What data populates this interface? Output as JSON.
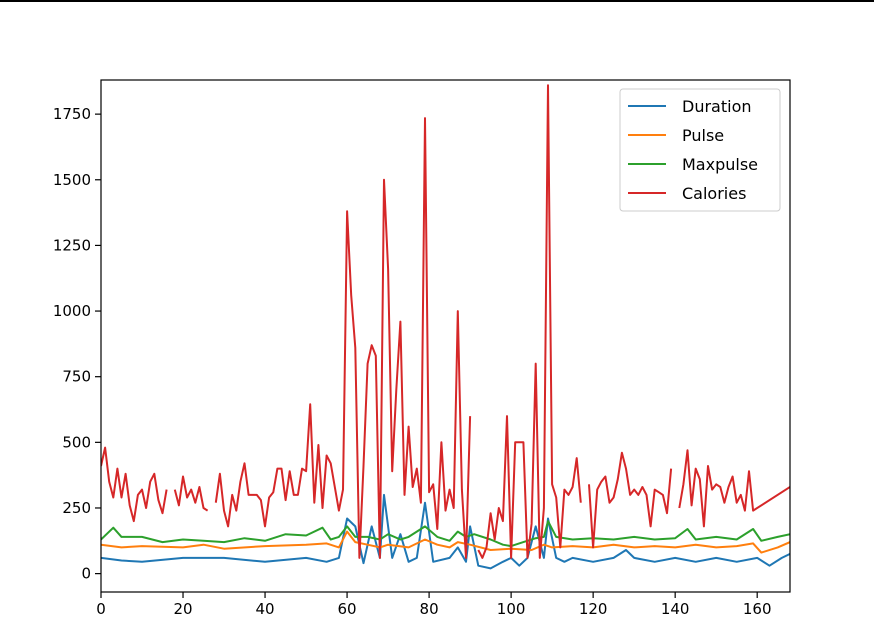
{
  "chart_data": {
    "type": "line",
    "title": "",
    "xlabel": "",
    "ylabel": "",
    "xlim": [
      0,
      168
    ],
    "ylim": [
      -70,
      1880
    ],
    "xticks": [
      0,
      20,
      40,
      60,
      80,
      100,
      120,
      140,
      160
    ],
    "yticks": [
      0,
      250,
      500,
      750,
      1000,
      1250,
      1500,
      1750
    ],
    "grid": false,
    "legend_position": "top-right",
    "series": [
      {
        "name": "Duration",
        "color": "#1f77b4",
        "points": [
          [
            0,
            60
          ],
          [
            5,
            50
          ],
          [
            10,
            45
          ],
          [
            20,
            60
          ],
          [
            30,
            60
          ],
          [
            40,
            45
          ],
          [
            50,
            60
          ],
          [
            55,
            45
          ],
          [
            58,
            60
          ],
          [
            60,
            210
          ],
          [
            62,
            180
          ],
          [
            64,
            40
          ],
          [
            66,
            180
          ],
          [
            68,
            60
          ],
          [
            69,
            300
          ],
          [
            71,
            60
          ],
          [
            73,
            150
          ],
          [
            75,
            45
          ],
          [
            77,
            60
          ],
          [
            79,
            270
          ],
          [
            81,
            45
          ],
          [
            85,
            60
          ],
          [
            87,
            100
          ],
          [
            89,
            45
          ],
          [
            90,
            180
          ],
          [
            92,
            30
          ],
          [
            95,
            20
          ],
          [
            98,
            45
          ],
          [
            100,
            60
          ],
          [
            102,
            30
          ],
          [
            104,
            60
          ],
          [
            106,
            180
          ],
          [
            108,
            60
          ],
          [
            109,
            210
          ],
          [
            111,
            60
          ],
          [
            113,
            45
          ],
          [
            115,
            60
          ],
          [
            120,
            45
          ],
          [
            125,
            60
          ],
          [
            128,
            90
          ],
          [
            130,
            60
          ],
          [
            135,
            45
          ],
          [
            140,
            60
          ],
          [
            145,
            45
          ],
          [
            150,
            60
          ],
          [
            155,
            45
          ],
          [
            160,
            60
          ],
          [
            163,
            30
          ],
          [
            166,
            60
          ],
          [
            168,
            75
          ]
        ]
      },
      {
        "name": "Pulse",
        "color": "#ff7f0e",
        "points": [
          [
            0,
            110
          ],
          [
            5,
            100
          ],
          [
            10,
            105
          ],
          [
            20,
            100
          ],
          [
            25,
            110
          ],
          [
            30,
            95
          ],
          [
            40,
            105
          ],
          [
            50,
            110
          ],
          [
            55,
            115
          ],
          [
            58,
            100
          ],
          [
            60,
            160
          ],
          [
            62,
            120
          ],
          [
            65,
            110
          ],
          [
            68,
            100
          ],
          [
            70,
            110
          ],
          [
            75,
            100
          ],
          [
            79,
            130
          ],
          [
            82,
            110
          ],
          [
            85,
            100
          ],
          [
            87,
            120
          ],
          [
            90,
            110
          ],
          [
            95,
            90
          ],
          [
            100,
            95
          ],
          [
            105,
            90
          ],
          [
            108,
            110
          ],
          [
            110,
            100
          ],
          [
            115,
            105
          ],
          [
            120,
            100
          ],
          [
            125,
            110
          ],
          [
            130,
            100
          ],
          [
            135,
            105
          ],
          [
            140,
            100
          ],
          [
            145,
            110
          ],
          [
            150,
            100
          ],
          [
            155,
            105
          ],
          [
            159,
            115
          ],
          [
            161,
            80
          ],
          [
            165,
            100
          ],
          [
            168,
            120
          ]
        ]
      },
      {
        "name": "Maxpulse",
        "color": "#2ca02c",
        "points": [
          [
            0,
            130
          ],
          [
            3,
            175
          ],
          [
            5,
            140
          ],
          [
            10,
            140
          ],
          [
            15,
            120
          ],
          [
            20,
            130
          ],
          [
            25,
            125
          ],
          [
            30,
            120
          ],
          [
            35,
            135
          ],
          [
            40,
            125
          ],
          [
            45,
            150
          ],
          [
            50,
            145
          ],
          [
            54,
            175
          ],
          [
            56,
            130
          ],
          [
            58,
            140
          ],
          [
            60,
            180
          ],
          [
            62,
            140
          ],
          [
            65,
            140
          ],
          [
            68,
            130
          ],
          [
            70,
            150
          ],
          [
            73,
            130
          ],
          [
            75,
            140
          ],
          [
            79,
            180
          ],
          [
            82,
            140
          ],
          [
            85,
            125
          ],
          [
            87,
            160
          ],
          [
            89,
            140
          ],
          [
            91,
            150
          ],
          [
            95,
            130
          ],
          [
            98,
            110
          ],
          [
            100,
            105
          ],
          [
            103,
            120
          ],
          [
            106,
            135
          ],
          [
            108,
            140
          ],
          [
            109,
            200
          ],
          [
            111,
            140
          ],
          [
            115,
            130
          ],
          [
            120,
            135
          ],
          [
            125,
            130
          ],
          [
            130,
            140
          ],
          [
            135,
            130
          ],
          [
            140,
            135
          ],
          [
            143,
            170
          ],
          [
            145,
            130
          ],
          [
            150,
            140
          ],
          [
            155,
            130
          ],
          [
            159,
            170
          ],
          [
            161,
            125
          ],
          [
            165,
            140
          ],
          [
            168,
            150
          ]
        ]
      },
      {
        "name": "Calories",
        "color": "#d62728",
        "segments": [
          [
            [
              0,
              410
            ],
            [
              1,
              480
            ],
            [
              2,
              350
            ],
            [
              3,
              290
            ],
            [
              4,
              400
            ],
            [
              5,
              290
            ],
            [
              6,
              380
            ],
            [
              7,
              260
            ],
            [
              8,
              200
            ],
            [
              9,
              300
            ],
            [
              10,
              320
            ],
            [
              11,
              250
            ],
            [
              12,
              350
            ],
            [
              13,
              380
            ],
            [
              14,
              280
            ],
            [
              15,
              230
            ],
            [
              16,
              320
            ]
          ],
          [
            [
              18,
              320
            ],
            [
              19,
              260
            ],
            [
              20,
              370
            ],
            [
              21,
              290
            ],
            [
              22,
              320
            ],
            [
              23,
              270
            ],
            [
              24,
              330
            ],
            [
              25,
              250
            ],
            [
              26,
              240
            ]
          ],
          [
            [
              28,
              270
            ],
            [
              29,
              380
            ],
            [
              30,
              240
            ],
            [
              31,
              180
            ],
            [
              32,
              300
            ],
            [
              33,
              240
            ],
            [
              34,
              350
            ],
            [
              35,
              420
            ],
            [
              36,
              300
            ],
            [
              37,
              300
            ],
            [
              38,
              300
            ],
            [
              39,
              280
            ],
            [
              40,
              180
            ],
            [
              41,
              290
            ],
            [
              42,
              310
            ],
            [
              43,
              400
            ],
            [
              44,
              400
            ],
            [
              45,
              280
            ],
            [
              46,
              390
            ],
            [
              47,
              300
            ],
            [
              48,
              300
            ],
            [
              49,
              400
            ],
            [
              50,
              390
            ],
            [
              51,
              645
            ],
            [
              52,
              270
            ],
            [
              53,
              490
            ],
            [
              54,
              250
            ],
            [
              55,
              450
            ],
            [
              56,
              420
            ],
            [
              57,
              330
            ],
            [
              58,
              240
            ],
            [
              59,
              320
            ],
            [
              60,
              1380
            ],
            [
              61,
              1060
            ],
            [
              62,
              860
            ],
            [
              63,
              60
            ],
            [
              64,
              410
            ],
            [
              65,
              800
            ],
            [
              66,
              870
            ],
            [
              67,
              830
            ],
            [
              68,
              60
            ],
            [
              69,
              1500
            ],
            [
              70,
              1160
            ],
            [
              71,
              390
            ],
            [
              72,
              700
            ],
            [
              73,
              960
            ],
            [
              74,
              300
            ],
            [
              75,
              560
            ],
            [
              76,
              330
            ],
            [
              77,
              400
            ],
            [
              78,
              270
            ],
            [
              79,
              1735
            ],
            [
              80,
              310
            ],
            [
              81,
              340
            ],
            [
              82,
              170
            ],
            [
              83,
              500
            ],
            [
              84,
              240
            ],
            [
              85,
              320
            ],
            [
              86,
              250
            ],
            [
              87,
              1000
            ],
            [
              88,
              320
            ],
            [
              89,
              60
            ],
            [
              90,
              600
            ]
          ]
        ],
        "segments_2": [
          [
            [
              92,
              90
            ],
            [
              93,
              60
            ],
            [
              94,
              100
            ],
            [
              95,
              230
            ],
            [
              96,
              130
            ],
            [
              97,
              250
            ],
            [
              98,
              200
            ],
            [
              99,
              600
            ],
            [
              100,
              60
            ],
            [
              101,
              500
            ],
            [
              102,
              500
            ],
            [
              103,
              500
            ],
            [
              104,
              60
            ],
            [
              105,
              190
            ],
            [
              106,
              800
            ],
            [
              107,
              60
            ],
            [
              108,
              250
            ],
            [
              109,
              1860
            ],
            [
              110,
              340
            ],
            [
              111,
              290
            ],
            [
              112,
              100
            ],
            [
              113,
              320
            ],
            [
              114,
              300
            ],
            [
              115,
              330
            ],
            [
              116,
              440
            ],
            [
              117,
              270
            ]
          ],
          [
            [
              119,
              340
            ],
            [
              120,
              100
            ],
            [
              121,
              320
            ],
            [
              122,
              350
            ],
            [
              123,
              370
            ],
            [
              124,
              270
            ],
            [
              125,
              290
            ],
            [
              126,
              360
            ],
            [
              127,
              460
            ],
            [
              128,
              400
            ],
            [
              129,
              300
            ],
            [
              130,
              320
            ],
            [
              131,
              300
            ],
            [
              132,
              330
            ],
            [
              133,
              300
            ],
            [
              134,
              180
            ],
            [
              135,
              320
            ],
            [
              136,
              310
            ],
            [
              137,
              300
            ],
            [
              138,
              230
            ],
            [
              139,
              400
            ]
          ],
          [
            [
              141,
              250
            ],
            [
              142,
              340
            ],
            [
              143,
              470
            ],
            [
              144,
              260
            ],
            [
              145,
              400
            ],
            [
              146,
              360
            ],
            [
              147,
              180
            ],
            [
              148,
              410
            ],
            [
              149,
              320
            ],
            [
              150,
              340
            ],
            [
              151,
              330
            ],
            [
              152,
              270
            ],
            [
              153,
              330
            ],
            [
              154,
              370
            ],
            [
              155,
              270
            ],
            [
              156,
              300
            ],
            [
              157,
              240
            ],
            [
              158,
              390
            ],
            [
              159,
              240
            ],
            [
              168,
              330
            ]
          ]
        ]
      }
    ]
  }
}
